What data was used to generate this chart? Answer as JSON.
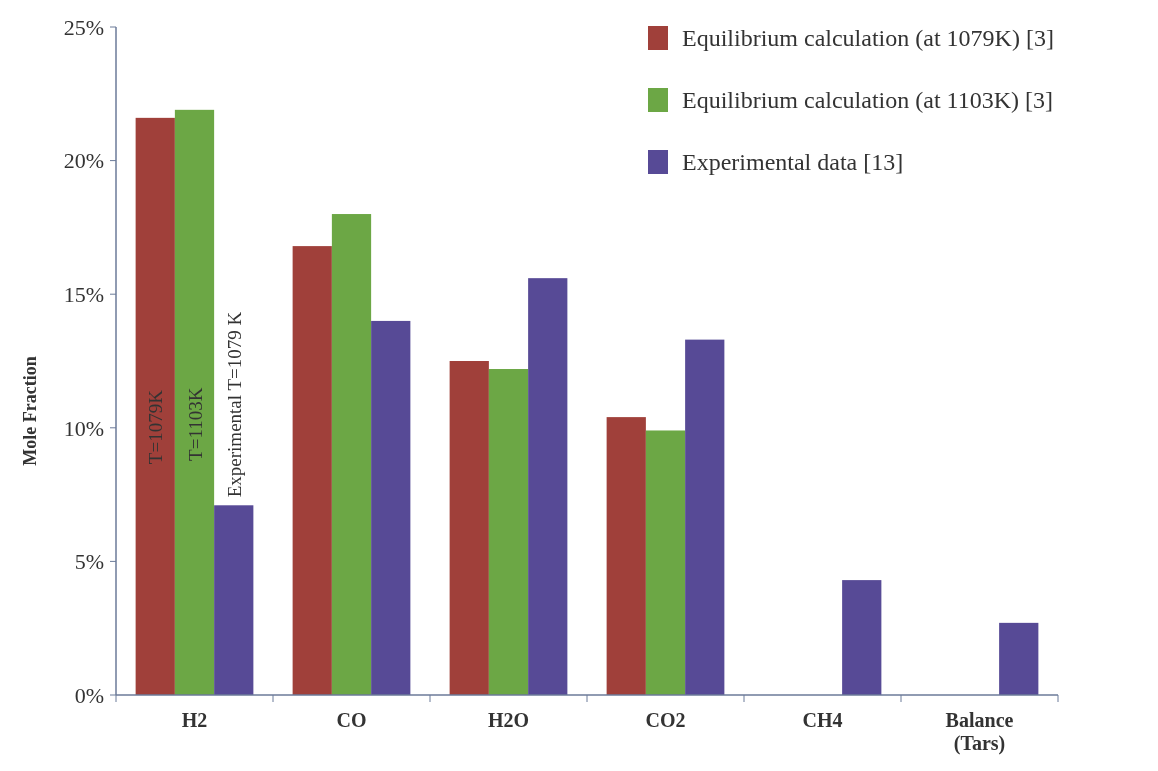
{
  "chart_data": {
    "type": "bar",
    "ylabel": "Mole Fraction",
    "categories": [
      "H2",
      "CO",
      "H2O",
      "CO2",
      "CH4",
      "Balance\n(Tars)"
    ],
    "series": [
      {
        "name": "Equilibrium calculation (at 1079K) [3]",
        "color": "#a0403a",
        "values": [
          21.6,
          16.8,
          12.5,
          10.4,
          0,
          0
        ]
      },
      {
        "name": "Equilibrium calculation (at 1103K) [3]",
        "color": "#6ca745",
        "values": [
          21.9,
          18.0,
          12.2,
          9.9,
          0,
          0
        ]
      },
      {
        "name": "Experimental data [13]",
        "color": "#574a96",
        "values": [
          7.1,
          14.0,
          15.6,
          13.3,
          4.3,
          2.7
        ]
      }
    ],
    "ylim": [
      0,
      25
    ],
    "yticks": [
      {
        "value": 0,
        "label": "0%"
      },
      {
        "value": 5,
        "label": "5%"
      },
      {
        "value": 10,
        "label": "10%"
      },
      {
        "value": 15,
        "label": "15%"
      },
      {
        "value": 20,
        "label": "20%"
      },
      {
        "value": 25,
        "label": "25%"
      }
    ],
    "annotations": [
      "T=1079K",
      "T=1103K",
      "Experimental T=1079 K"
    ],
    "grid": false,
    "legend": "top right"
  }
}
